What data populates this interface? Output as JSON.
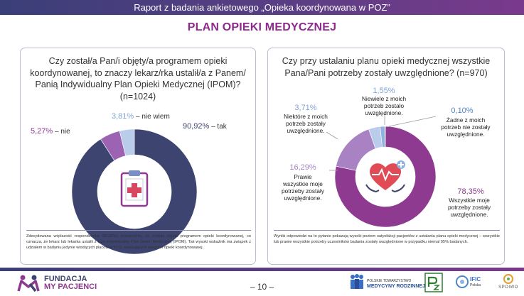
{
  "header": {
    "title": "Raport z badania ankietowego  „Opieka koordynowana w POZ”"
  },
  "page_title": "PLAN OPIEKI MEDYCZNEJ",
  "left_panel": {
    "question_lines": [
      "Czy został/a Pan/i objęty/a programem opieki",
      "koordynowanej, to znaczy lekarz/rka ustalił/a z Panem/",
      "Panią Indywidualny Plan Opieki Medycznej (IPOM)?",
      "(n=1024)"
    ],
    "labels": [
      {
        "pct": "90,92%",
        "text": " – tak"
      },
      {
        "pct": "5,27%",
        "text": " – nie"
      },
      {
        "pct": "3,81%",
        "text": " – nie wiem"
      }
    ],
    "icon": "clipboard-medical-icon",
    "note": "Zdecydowana większość respondentów (90,92%) potwierdziła, że została objęta programem opieki koordynowanej, co oznacza, że lekarz lub lekarka ustalili z nimi Indywidualny Plan Opieki Medycznej (IPOM). Tak wysoki wskaźnik ma związek z udziałem w badaniu jedynie  wiodących placówek POZ, realizujących program opieki koordynowanej."
  },
  "right_panel": {
    "question_lines": [
      "Czy przy ustalaniu planu opieki medycznej wszystkie",
      "Pana/Pani potrzeby zostały uwzględnione? (n=970)"
    ],
    "labels": [
      {
        "pct": "78,35%",
        "lines": [
          "Wszystkie moje",
          "potrzeby zostały",
          "uwzględnione."
        ]
      },
      {
        "pct": "16,29%",
        "lines": [
          "Prawie",
          "wszystkie moje",
          "potrzeby zostały",
          "uwzględnione."
        ]
      },
      {
        "pct": "3,71%",
        "lines": [
          "Niektóre z moich",
          "potrzeb zostały",
          "uwzględnione."
        ]
      },
      {
        "pct": "1,55%",
        "lines": [
          "Niewiele z moich",
          "potrzeb zostało",
          "uwzględnione."
        ]
      },
      {
        "pct": "0,10%",
        "lines": [
          "Żadne z moich",
          "potrzeb nie zostały",
          "uwzględnione."
        ]
      }
    ],
    "icon": "heart-care-icon",
    "note": "Wyniki odpowiedzi na to pytanie pokazują wysoki poziom satysfakcji pacjentów z ustalania planu opieki medycznej – wszystkie lub prawie wszystkie potrzeby uczestników badania zostały uwzględnione w przypadku niemal 95% badanych."
  },
  "footer": {
    "page_number": "– 10 –",
    "logos": {
      "fundacja_line1": "FUNDACJA",
      "fundacja_line2": "MY PACJENCI",
      "ptmr_small": "POLSKIE TOWARZYSTWO",
      "ptmr_big": "MEDYCYNY RODZINNEJ",
      "ific_line1": "IFIC",
      "ific_line2": "Polska",
      "spoiwo": "SPOIWO"
    }
  },
  "colors": {
    "navy": "#3d4470",
    "purple": "#8f3a91",
    "lavender": "#a882c2",
    "light_blue": "#b9cdea",
    "blue": "#4f86c6",
    "accent_title": "#8e2a8e"
  },
  "chart_data": [
    {
      "type": "pie",
      "style": "donut",
      "categories": [
        "tak",
        "nie",
        "nie wiem"
      ],
      "values": [
        90.92,
        5.27,
        3.81
      ],
      "colors": [
        "#3d4470",
        "#9b63b2",
        "#b9cdea"
      ]
    },
    {
      "type": "pie",
      "style": "donut",
      "categories": [
        "Wszystkie moje potrzeby zostały uwzględnione.",
        "Prawie wszystkie moje potrzeby zostały uwzględnione.",
        "Niektóre z moich potrzeb zostały uwzględnione.",
        "Niewiele z moich potrzeb zostało uwzględnione.",
        "Żadne z moich potrzeb nie zostały uwzględnione."
      ],
      "values": [
        78.35,
        16.29,
        3.71,
        1.55,
        0.1
      ],
      "colors": [
        "#8f3a91",
        "#a882c2",
        "#b9cdea",
        "#8fb2e0",
        "#4f86c6"
      ]
    }
  ]
}
